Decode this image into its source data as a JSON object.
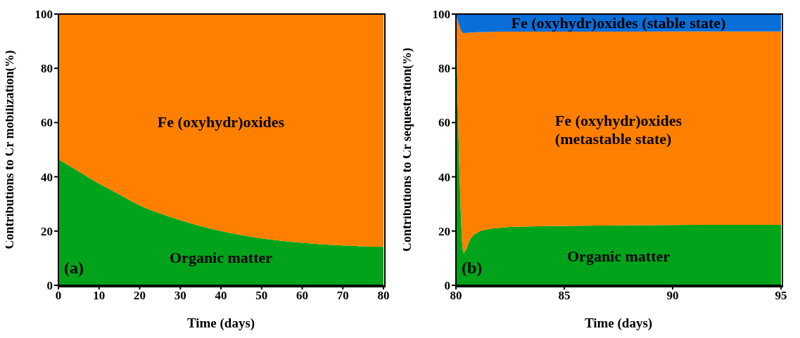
{
  "chart_data": [
    {
      "type": "area",
      "stacked": true,
      "xlabel": "Time (days)",
      "ylabel": "Contributions to Cr mobilization(%)",
      "annotations": [
        "(a)"
      ],
      "x": [
        0,
        5,
        10,
        15,
        20,
        25,
        30,
        35,
        40,
        45,
        50,
        55,
        60,
        65,
        70,
        75,
        80
      ],
      "xlim": [
        0,
        80
      ],
      "xticks": [
        0,
        10,
        20,
        30,
        40,
        50,
        60,
        70,
        80
      ],
      "ylim": [
        0,
        100
      ],
      "yticks": [
        0,
        20,
        40,
        60,
        80,
        100
      ],
      "series": [
        {
          "name": "Organic matter",
          "color": "#00a31a",
          "values": [
            46.5,
            42,
            37.5,
            33.5,
            29.5,
            26.5,
            24,
            21.8,
            20,
            18.5,
            17.3,
            16.4,
            15.7,
            15.1,
            14.7,
            14.4,
            14.2
          ]
        },
        {
          "name": "Fe (oxyhydr)oxides",
          "color": "#ff8000",
          "values": [
            53.5,
            58,
            62.5,
            66.5,
            70.5,
            73.5,
            76,
            78.2,
            80,
            81.5,
            82.7,
            83.6,
            84.3,
            84.9,
            85.3,
            85.6,
            85.8
          ]
        }
      ]
    },
    {
      "type": "area",
      "stacked": true,
      "xlabel": "Time (days)",
      "ylabel": "Contributions to Cr sequestration(%)",
      "annotations": [
        "(b)"
      ],
      "x": [
        80,
        80.35,
        80.7,
        81,
        81.5,
        82,
        83,
        85,
        90,
        95
      ],
      "xlim": [
        80,
        95
      ],
      "xticks": [
        80,
        85,
        90,
        95
      ],
      "ylim": [
        0,
        100
      ],
      "yticks": [
        0,
        20,
        40,
        60,
        80,
        100
      ],
      "series": [
        {
          "name": "Organic matter",
          "color": "#00a31a",
          "values": [
            100,
            12,
            17.5,
            19.5,
            20.7,
            21.2,
            21.6,
            21.9,
            22.2,
            22.3
          ]
        },
        {
          "name": "Fe (oxyhydr)oxides (metastable state)",
          "color": "#ff8000",
          "values": [
            0,
            81,
            75.7,
            73.8,
            72.7,
            72.3,
            71.9,
            71.6,
            71.4,
            71.3
          ]
        },
        {
          "name": "Fe (oxyhydr)oxides (stable state)",
          "color": "#0a6ed8",
          "values": [
            0,
            7,
            6.8,
            6.7,
            6.6,
            6.5,
            6.5,
            6.5,
            6.4,
            6.4
          ]
        }
      ]
    }
  ]
}
